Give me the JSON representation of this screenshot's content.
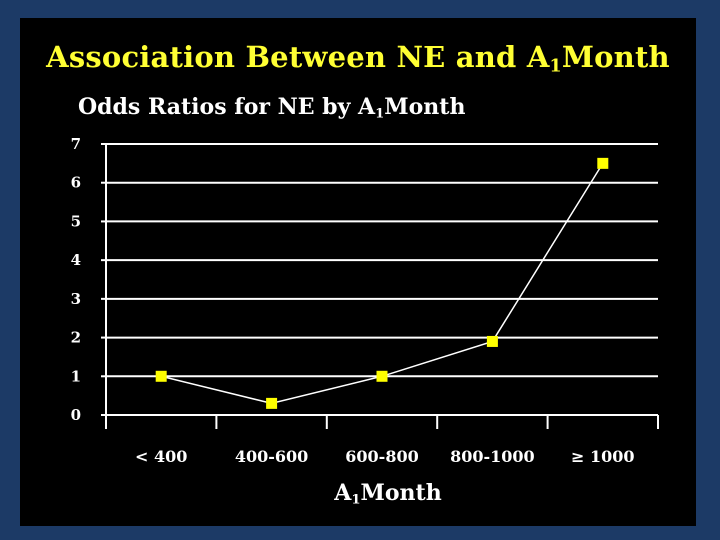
{
  "slide": {
    "title_pre": "Association Between NE  and A",
    "title_sub": "1",
    "title_post": "Month",
    "subtitle_pre": "Odds Ratios for NE by A",
    "subtitle_sub": "1",
    "subtitle_post": "Month",
    "xlabel_pre": "A",
    "xlabel_sub": "1",
    "xlabel_post": "Month"
  },
  "colors": {
    "background": "#1c3a66",
    "panel": "#000000",
    "title": "#ffff33",
    "marker": "#ffff00",
    "line": "#ffffff"
  },
  "chart_data": {
    "type": "line",
    "title": "Odds Ratios for NE by A1Month",
    "xlabel": "A1Month",
    "ylabel": "",
    "categories": [
      "< 400",
      "400-600",
      "600-800",
      "800-1000",
      "≥ 1000"
    ],
    "series": [
      {
        "values": [
          1.0,
          0.3,
          1.0,
          1.9,
          6.5
        ]
      }
    ],
    "ylim": [
      0,
      7
    ],
    "yticks": [
      "0",
      "1",
      "2",
      "3",
      "4",
      "5",
      "6",
      "7"
    ],
    "grid": true
  }
}
